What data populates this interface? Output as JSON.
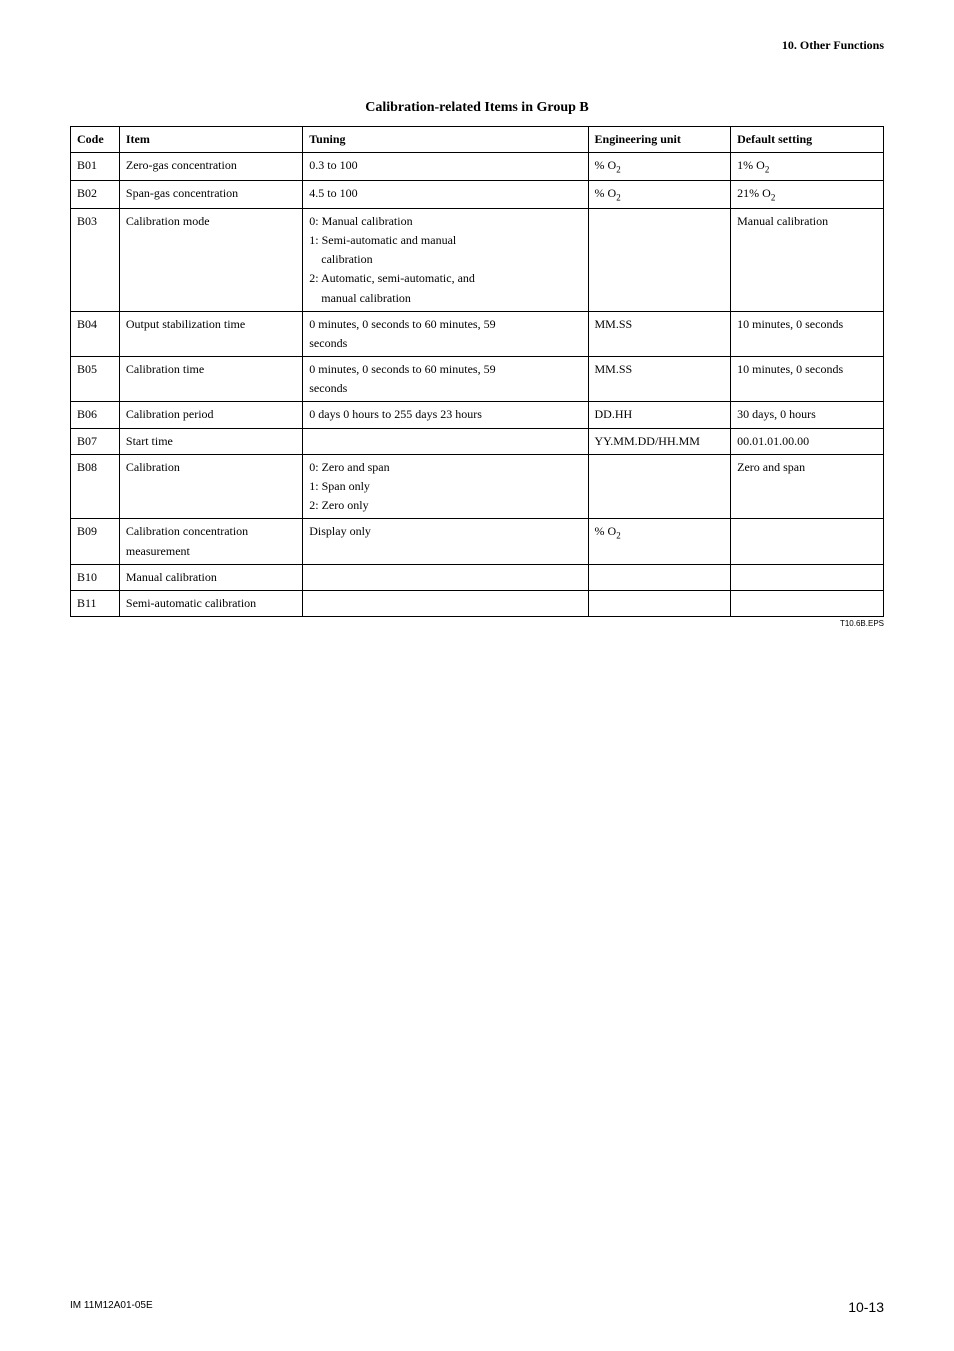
{
  "header": {
    "section": "10. Other Functions"
  },
  "table": {
    "title": "Calibration-related Items in Group B",
    "source_label": "T10.6B.EPS",
    "columns": [
      "Code",
      "Item",
      "Tuning",
      "Engineering unit",
      "Default setting"
    ],
    "rows": [
      {
        "code": "B01",
        "item": "Zero-gas concentration",
        "tuning": [
          "0.3 to 100"
        ],
        "eng": "% O",
        "eng_sub": "2",
        "def": "1% O",
        "def_sub": "2"
      },
      {
        "code": "B02",
        "item": "Span-gas concentration",
        "tuning": [
          "4.5 to 100"
        ],
        "eng": "% O",
        "eng_sub": "2",
        "def": "21% O",
        "def_sub": "2"
      },
      {
        "code": "B03",
        "item": "Calibration mode",
        "tuning": [
          "0: Manual calibration",
          "1: Semi-automatic and manual",
          "    calibration",
          "2: Automatic, semi-automatic, and",
          "    manual calibration"
        ],
        "eng": "",
        "def": "Manual calibration"
      },
      {
        "code": "B04",
        "item": "Output stabilization time",
        "tuning": [
          "0 minutes, 0 seconds to 60 minutes, 59",
          "seconds"
        ],
        "eng": "MM.SS",
        "def": "10 minutes, 0 seconds"
      },
      {
        "code": "B05",
        "item": "Calibration time",
        "tuning": [
          "0 minutes, 0 seconds to 60 minutes, 59",
          "seconds"
        ],
        "eng": "MM.SS",
        "def": "10 minutes, 0 seconds"
      },
      {
        "code": "B06",
        "item": "Calibration period",
        "tuning": [
          "0 days 0 hours to 255 days 23 hours"
        ],
        "eng": "DD.HH",
        "def": "30 days, 0 hours"
      },
      {
        "code": "B07",
        "item": "Start time",
        "tuning": [
          ""
        ],
        "eng": "YY.MM.DD/HH.MM",
        "def": "00.01.01.00.00"
      },
      {
        "code": "B08",
        "item": "Calibration",
        "tuning": [
          "0: Zero and span",
          "1: Span only",
          "2: Zero only"
        ],
        "eng": "",
        "def": "Zero and span"
      },
      {
        "code": "B09",
        "item_lines": [
          "Calibration concentration",
          "measurement"
        ],
        "tuning": [
          "Display only"
        ],
        "eng": "% O",
        "eng_sub": "2",
        "def": ""
      },
      {
        "code": "B10",
        "item": "Manual calibration",
        "tuning": [
          ""
        ],
        "eng": "",
        "def": ""
      },
      {
        "code": "B11",
        "item": "Semi-automatic calibration",
        "tuning": [
          ""
        ],
        "eng": "",
        "def": ""
      }
    ]
  },
  "footer": {
    "left": "IM 11M12A01-05E",
    "right": "10-13"
  }
}
